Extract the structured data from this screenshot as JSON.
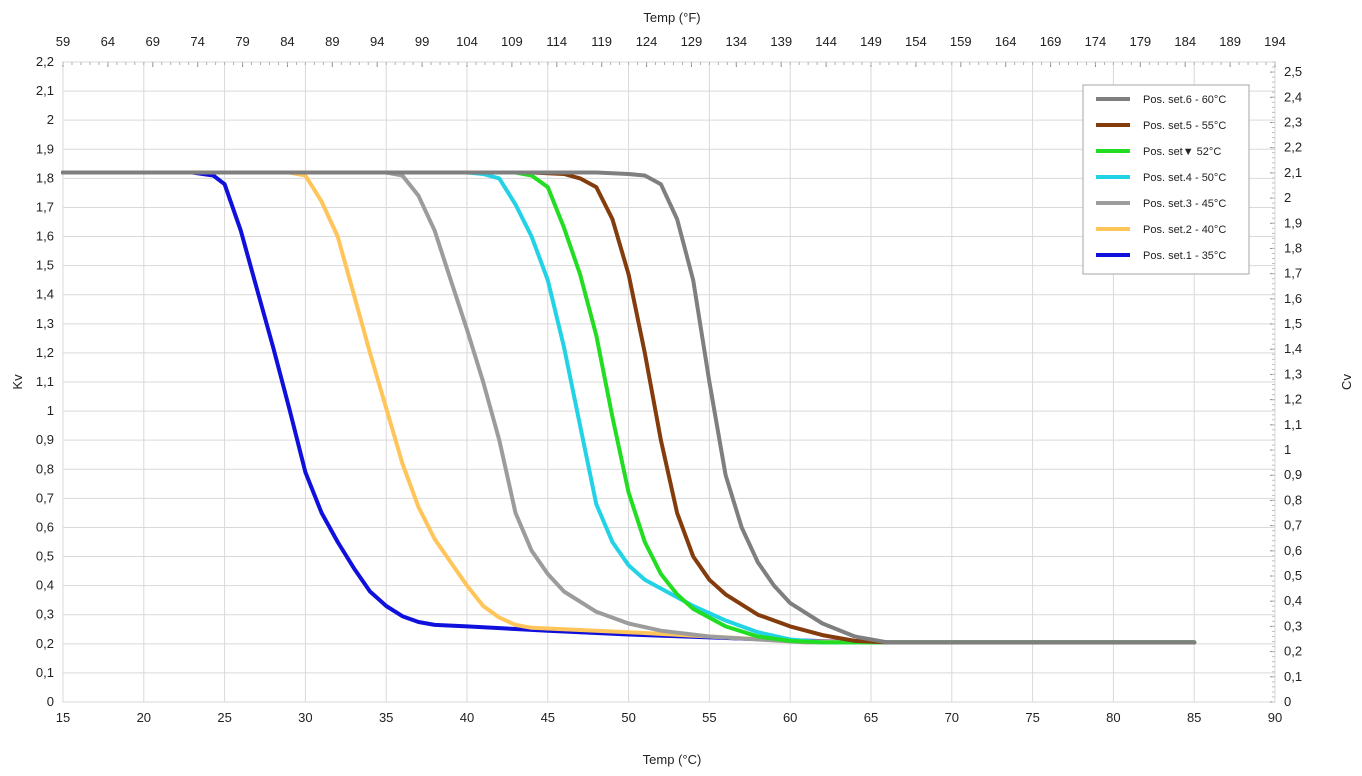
{
  "chart_data": {
    "type": "line",
    "xlabel": "Temp (°C)",
    "x2label": "Temp (°F)",
    "ylabel": "Kv",
    "y2label": "Cv",
    "xlim": [
      15,
      90
    ],
    "ylim": [
      0,
      2.2
    ],
    "y2lim": [
      0,
      2.54
    ],
    "grid": true,
    "legend_position": "top-right",
    "x_ticks": [
      15,
      20,
      25,
      30,
      35,
      40,
      45,
      50,
      55,
      60,
      65,
      70,
      75,
      80,
      85,
      90
    ],
    "x2_ticks": [
      "59",
      "64",
      "69",
      "74",
      "79",
      "84",
      "89",
      "94",
      "99",
      "104",
      "109",
      "114",
      "119",
      "124",
      "129",
      "134",
      "139",
      "144",
      "149",
      "154",
      "159",
      "164",
      "169",
      "174",
      "179",
      "184",
      "189",
      "194"
    ],
    "y_ticks": [
      "0",
      "0,1",
      "0,2",
      "0,3",
      "0,4",
      "0,5",
      "0,6",
      "0,7",
      "0,8",
      "0,9",
      "1",
      "1,1",
      "1,2",
      "1,3",
      "1,4",
      "1,5",
      "1,6",
      "1,7",
      "1,8",
      "1,9",
      "2",
      "2,1",
      "2,2"
    ],
    "y2_ticks": [
      "0",
      "0,1",
      "0,2",
      "0,3",
      "0,4",
      "0,5",
      "0,6",
      "0,7",
      "0,8",
      "0,9",
      "1",
      "1,1",
      "1,2",
      "1,3",
      "1,4",
      "1,5",
      "1,6",
      "1,7",
      "1,8",
      "1,9",
      "2",
      "2,1",
      "2,2",
      "2,3",
      "2,4",
      "2,5"
    ],
    "series": [
      {
        "name": "Pos. set.6 - 60°C",
        "color": "#7f7f7f",
        "points": [
          [
            15,
            1.82
          ],
          [
            48,
            1.82
          ],
          [
            50,
            1.815
          ],
          [
            51,
            1.81
          ],
          [
            52,
            1.78
          ],
          [
            53,
            1.66
          ],
          [
            54,
            1.45
          ],
          [
            55,
            1.1
          ],
          [
            56,
            0.78
          ],
          [
            57,
            0.6
          ],
          [
            58,
            0.48
          ],
          [
            59,
            0.4
          ],
          [
            60,
            0.34
          ],
          [
            62,
            0.27
          ],
          [
            64,
            0.225
          ],
          [
            66,
            0.205
          ],
          [
            70,
            0.205
          ],
          [
            85,
            0.205
          ]
        ]
      },
      {
        "name": "Pos. set.5 - 55°C",
        "color": "#843c0c",
        "points": [
          [
            15,
            1.82
          ],
          [
            44,
            1.82
          ],
          [
            46,
            1.815
          ],
          [
            47,
            1.8
          ],
          [
            48,
            1.77
          ],
          [
            49,
            1.66
          ],
          [
            50,
            1.47
          ],
          [
            51,
            1.2
          ],
          [
            52,
            0.9
          ],
          [
            53,
            0.65
          ],
          [
            54,
            0.5
          ],
          [
            55,
            0.42
          ],
          [
            56,
            0.37
          ],
          [
            58,
            0.3
          ],
          [
            60,
            0.26
          ],
          [
            62,
            0.23
          ],
          [
            64,
            0.21
          ],
          [
            66,
            0.205
          ],
          [
            85,
            0.205
          ]
        ]
      },
      {
        "name": "Pos. set▼ 52°C",
        "color": "#22dd22",
        "points": [
          [
            15,
            1.82
          ],
          [
            43,
            1.82
          ],
          [
            44,
            1.81
          ],
          [
            45,
            1.77
          ],
          [
            46,
            1.63
          ],
          [
            47,
            1.47
          ],
          [
            48,
            1.26
          ],
          [
            49,
            0.98
          ],
          [
            50,
            0.72
          ],
          [
            51,
            0.55
          ],
          [
            52,
            0.44
          ],
          [
            53,
            0.37
          ],
          [
            54,
            0.32
          ],
          [
            56,
            0.26
          ],
          [
            58,
            0.225
          ],
          [
            60,
            0.21
          ],
          [
            62,
            0.205
          ],
          [
            85,
            0.205
          ]
        ]
      },
      {
        "name": "Pos. set.4 - 50°C",
        "color": "#22d3e6",
        "points": [
          [
            15,
            1.82
          ],
          [
            40,
            1.82
          ],
          [
            41,
            1.815
          ],
          [
            42,
            1.8
          ],
          [
            43,
            1.71
          ],
          [
            44,
            1.6
          ],
          [
            45,
            1.45
          ],
          [
            46,
            1.22
          ],
          [
            47,
            0.95
          ],
          [
            48,
            0.68
          ],
          [
            49,
            0.55
          ],
          [
            50,
            0.47
          ],
          [
            51,
            0.42
          ],
          [
            52,
            0.39
          ],
          [
            54,
            0.33
          ],
          [
            56,
            0.28
          ],
          [
            58,
            0.24
          ],
          [
            60,
            0.215
          ],
          [
            62,
            0.205
          ],
          [
            85,
            0.205
          ]
        ]
      },
      {
        "name": "Pos. set.3 - 45°C",
        "color": "#9c9c9c",
        "points": [
          [
            15,
            1.82
          ],
          [
            35,
            1.82
          ],
          [
            36,
            1.81
          ],
          [
            37,
            1.74
          ],
          [
            38,
            1.62
          ],
          [
            39,
            1.45
          ],
          [
            40,
            1.28
          ],
          [
            41,
            1.1
          ],
          [
            42,
            0.9
          ],
          [
            43,
            0.65
          ],
          [
            44,
            0.52
          ],
          [
            45,
            0.44
          ],
          [
            46,
            0.38
          ],
          [
            48,
            0.31
          ],
          [
            50,
            0.27
          ],
          [
            52,
            0.245
          ],
          [
            55,
            0.225
          ],
          [
            58,
            0.215
          ],
          [
            61,
            0.205
          ],
          [
            85,
            0.205
          ]
        ]
      },
      {
        "name": "Pos. set.2 - 40°C",
        "color": "#ffc55a",
        "points": [
          [
            15,
            1.82
          ],
          [
            29,
            1.82
          ],
          [
            30,
            1.81
          ],
          [
            31,
            1.72
          ],
          [
            32,
            1.6
          ],
          [
            33,
            1.4
          ],
          [
            34,
            1.2
          ],
          [
            35,
            1.01
          ],
          [
            36,
            0.82
          ],
          [
            37,
            0.67
          ],
          [
            38,
            0.56
          ],
          [
            39,
            0.48
          ],
          [
            40,
            0.4
          ],
          [
            41,
            0.33
          ],
          [
            42,
            0.29
          ],
          [
            43,
            0.265
          ],
          [
            44,
            0.255
          ],
          [
            50,
            0.24
          ],
          [
            55,
            0.225
          ],
          [
            60,
            0.21
          ],
          [
            65,
            0.205
          ],
          [
            85,
            0.205
          ]
        ]
      },
      {
        "name": "Pos. set.1 - 35°C",
        "color": "#1010dd",
        "points": [
          [
            15,
            1.82
          ],
          [
            23,
            1.82
          ],
          [
            24.3,
            1.81
          ],
          [
            25,
            1.78
          ],
          [
            26,
            1.62
          ],
          [
            27,
            1.42
          ],
          [
            28,
            1.22
          ],
          [
            29,
            1.01
          ],
          [
            30,
            0.79
          ],
          [
            31,
            0.65
          ],
          [
            32,
            0.55
          ],
          [
            33,
            0.46
          ],
          [
            34,
            0.38
          ],
          [
            35,
            0.33
          ],
          [
            36,
            0.295
          ],
          [
            37,
            0.275
          ],
          [
            38,
            0.265
          ],
          [
            40,
            0.26
          ],
          [
            45,
            0.245
          ],
          [
            50,
            0.232
          ],
          [
            55,
            0.222
          ],
          [
            60,
            0.212
          ],
          [
            65,
            0.205
          ],
          [
            85,
            0.205
          ]
        ]
      }
    ]
  }
}
